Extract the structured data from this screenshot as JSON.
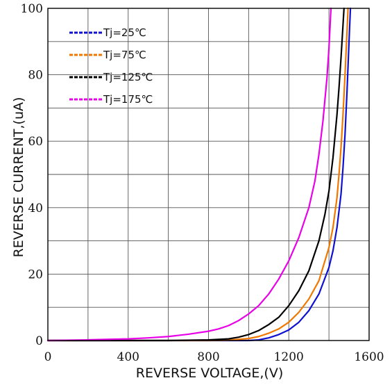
{
  "chart_data": {
    "type": "line",
    "title": "",
    "xlabel": "REVERSE VOLTAGE,(V)",
    "ylabel": "REVERSE CURRENT,(uA)",
    "xlim": [
      0,
      1600
    ],
    "ylim": [
      0,
      100
    ],
    "xticks": [
      0,
      200,
      400,
      600,
      800,
      1000,
      1200,
      1400,
      1600
    ],
    "xtick_labels": [
      "0",
      "400",
      "800",
      "1200",
      "1600"
    ],
    "xtick_label_values": [
      0,
      400,
      800,
      1200,
      1600
    ],
    "yticks": [
      0,
      10,
      20,
      30,
      40,
      50,
      60,
      70,
      80,
      90,
      100
    ],
    "ytick_labels": [
      "0",
      "20",
      "40",
      "60",
      "80",
      "100"
    ],
    "ytick_label_values": [
      0,
      20,
      40,
      60,
      80,
      100
    ],
    "grid": true,
    "legend_placement": "top-left",
    "series": [
      {
        "name": "Tj=25℃",
        "color": "#1010d0",
        "x": [
          0,
          200,
          400,
          600,
          800,
          1000,
          1050,
          1100,
          1150,
          1200,
          1250,
          1300,
          1350,
          1400,
          1420,
          1440,
          1460,
          1470,
          1480,
          1490,
          1500,
          1507
        ],
        "y": [
          0,
          0,
          0,
          0,
          0,
          0,
          0.2,
          0.8,
          1.8,
          3.2,
          5.5,
          9,
          14,
          22,
          27,
          34,
          44,
          52,
          62,
          75,
          90,
          100
        ]
      },
      {
        "name": "Tj=75℃",
        "color": "#f07800",
        "x": [
          0,
          200,
          400,
          600,
          800,
          900,
          1000,
          1050,
          1100,
          1150,
          1200,
          1250,
          1300,
          1350,
          1400,
          1420,
          1440,
          1450,
          1460,
          1470,
          1480,
          1490,
          1495
        ],
        "y": [
          0,
          0,
          0,
          0,
          0,
          0.1,
          0.6,
          1.2,
          2.2,
          3.5,
          5.5,
          8.5,
          12.5,
          18,
          28,
          34,
          43,
          50,
          58,
          68,
          80,
          93,
          100
        ]
      },
      {
        "name": "Tj=125℃",
        "color": "#000000",
        "x": [
          0,
          200,
          400,
          600,
          800,
          900,
          950,
          1000,
          1050,
          1100,
          1150,
          1200,
          1250,
          1300,
          1350,
          1380,
          1400,
          1420,
          1440,
          1450,
          1460,
          1470,
          1475
        ],
        "y": [
          0,
          0,
          0,
          0,
          0.2,
          0.5,
          1,
          1.8,
          3,
          4.8,
          7,
          10.5,
          15,
          21,
          30,
          38,
          45,
          55,
          68,
          76,
          85,
          95,
          100
        ]
      },
      {
        "name": "Tj=175℃",
        "color": "#e800e8",
        "x": [
          0,
          200,
          400,
          500,
          600,
          700,
          800,
          850,
          900,
          950,
          1000,
          1050,
          1100,
          1150,
          1200,
          1250,
          1300,
          1330,
          1350,
          1370,
          1390,
          1400,
          1410
        ],
        "y": [
          0,
          0.2,
          0.5,
          0.8,
          1.2,
          1.9,
          2.8,
          3.5,
          4.5,
          6,
          8,
          10.5,
          14,
          18.5,
          24,
          31,
          40,
          48,
          56,
          66,
          79,
          88,
          100
        ]
      }
    ]
  }
}
